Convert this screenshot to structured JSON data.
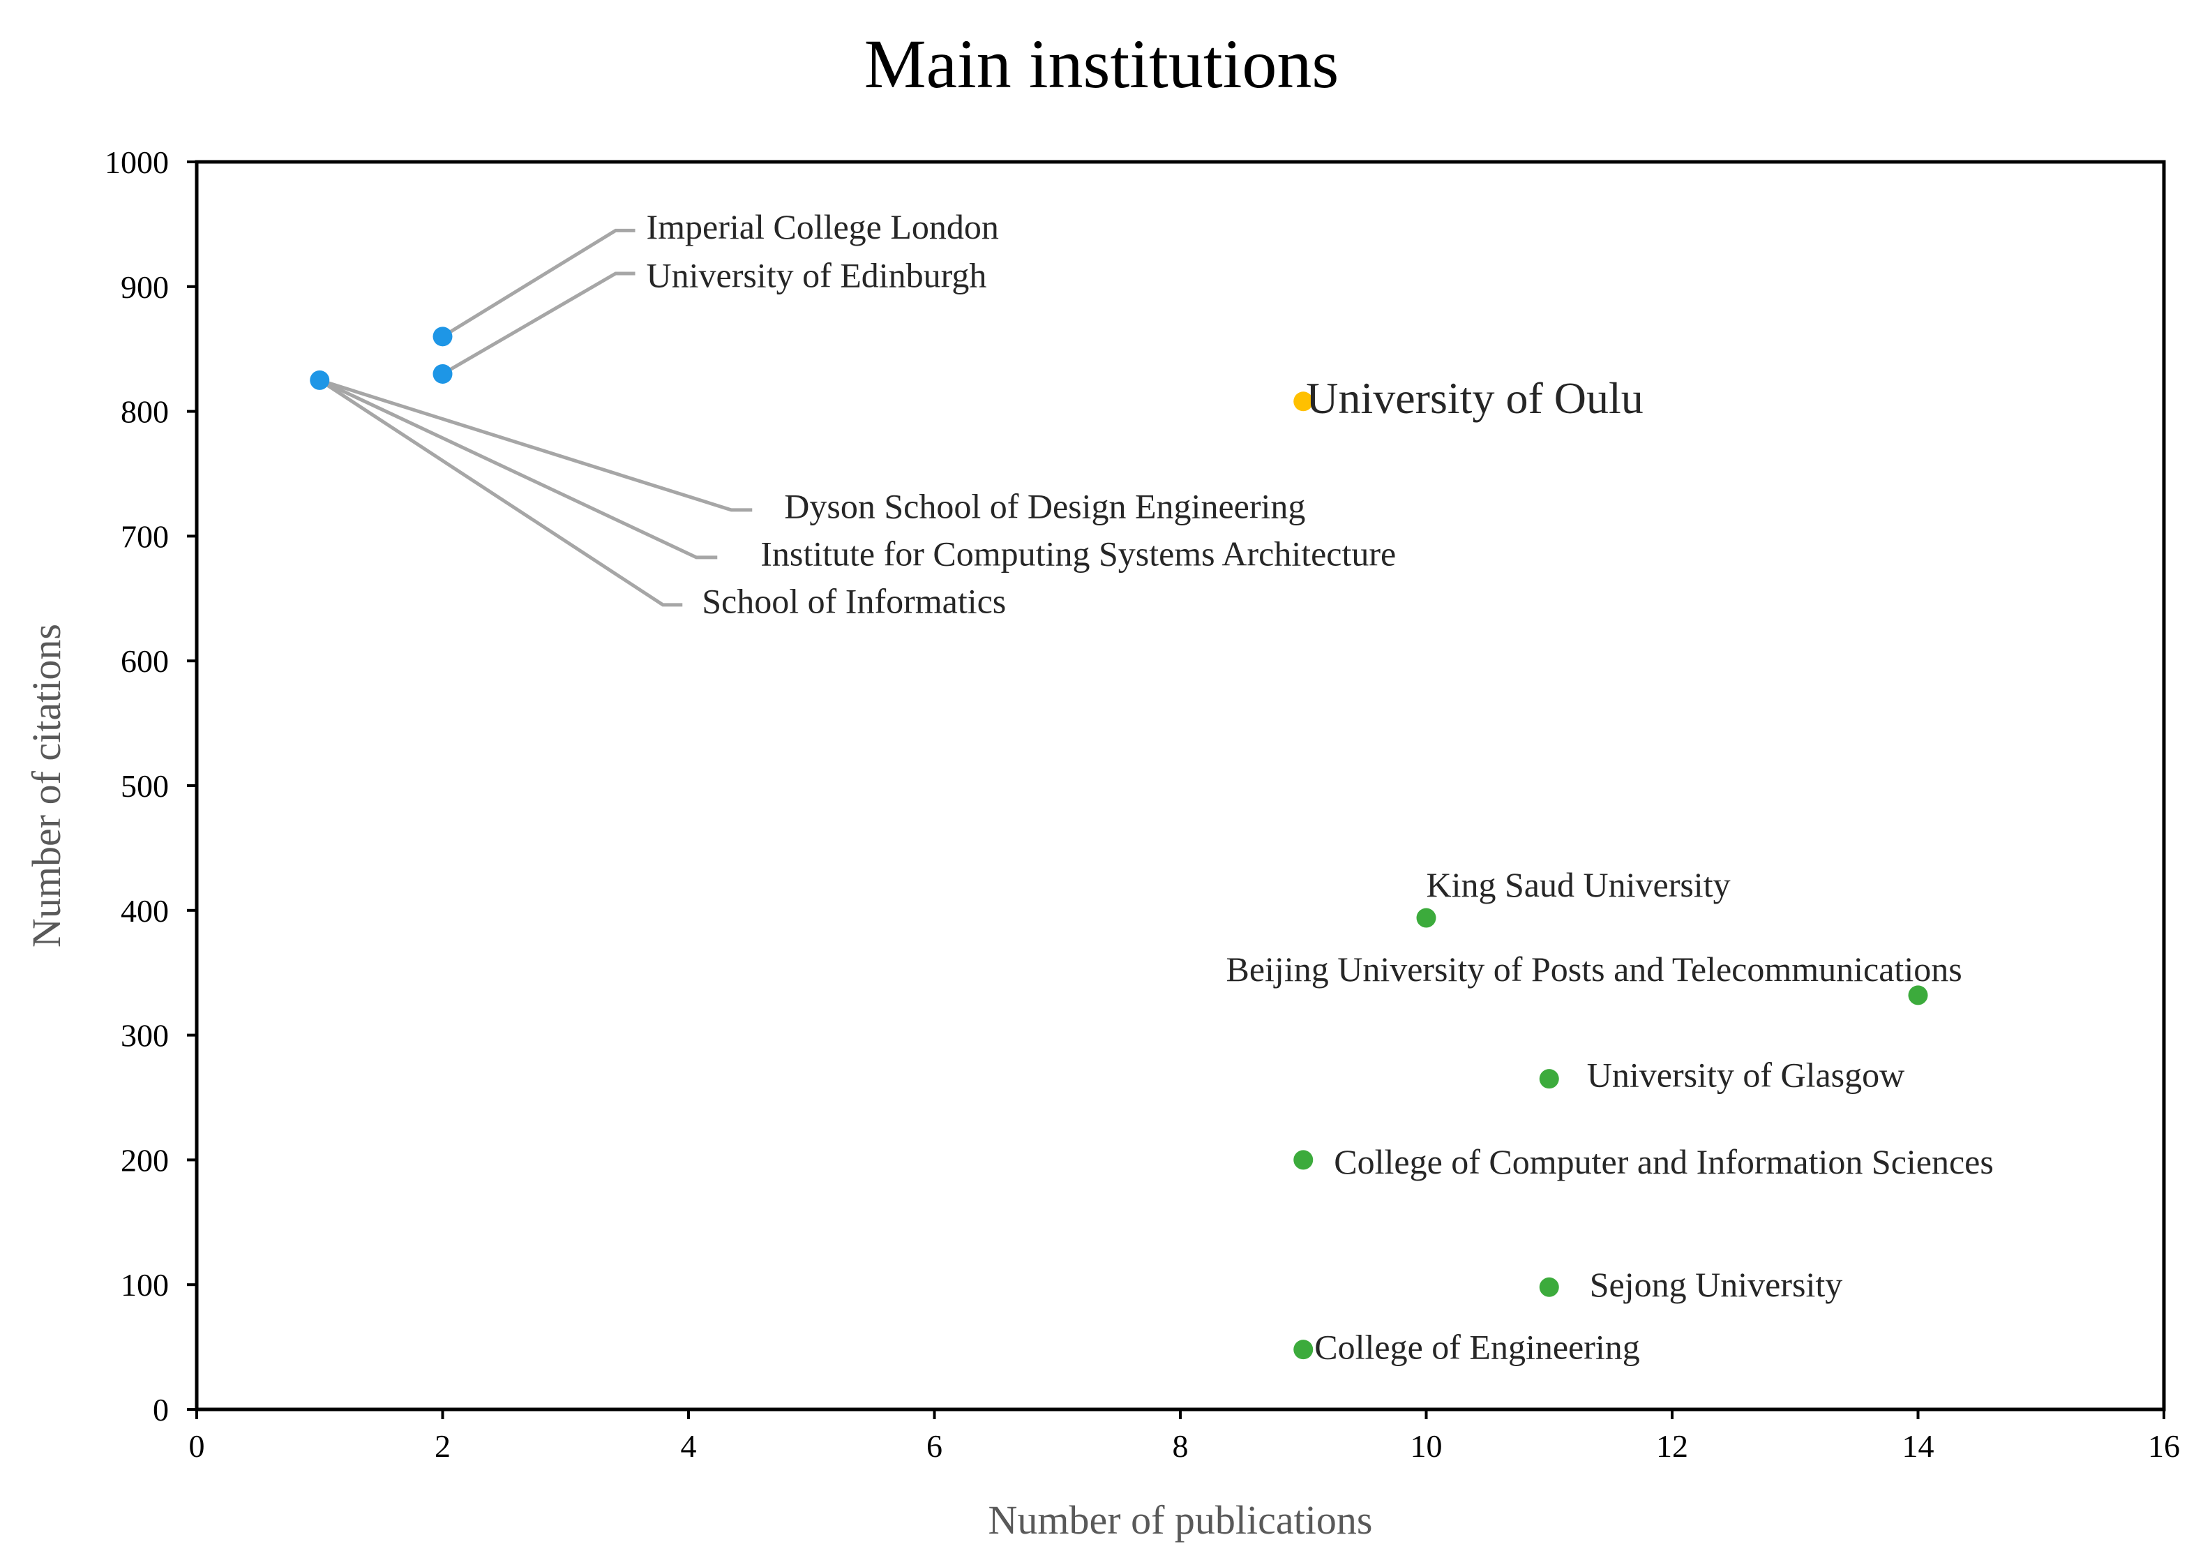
{
  "chart_data": {
    "type": "scatter",
    "title": "Main institutions",
    "xlabel": "Number of publications",
    "ylabel": "Number of citations",
    "xlim": [
      0,
      16
    ],
    "ylim": [
      0,
      1000
    ],
    "xticks": [
      0,
      2,
      4,
      6,
      8,
      10,
      12,
      14,
      16
    ],
    "yticks": [
      0,
      100,
      200,
      300,
      400,
      500,
      600,
      700,
      800,
      900,
      1000
    ],
    "grid": false,
    "legend": "none",
    "colors": {
      "blue": "#1e96e6",
      "orange": "#ffc000",
      "green": "#3cab3c"
    },
    "points": [
      {
        "label": "Imperial College London",
        "x": 2,
        "y": 860,
        "color": "blue"
      },
      {
        "label": "University of Edinburgh",
        "x": 2,
        "y": 830,
        "color": "blue"
      },
      {
        "label": "Dyson School of Design Engineering",
        "x": 1,
        "y": 825,
        "color": "blue"
      },
      {
        "label": "Institute for Computing Systems Architecture",
        "x": 1,
        "y": 825,
        "color": "blue"
      },
      {
        "label": "School of Informatics",
        "x": 1,
        "y": 825,
        "color": "blue"
      },
      {
        "label": "University of Oulu",
        "x": 9,
        "y": 808,
        "color": "orange"
      },
      {
        "label": "King Saud University",
        "x": 10,
        "y": 394,
        "color": "green"
      },
      {
        "label": "Beijing University of Posts and Telecommunications",
        "x": 14,
        "y": 332,
        "color": "green"
      },
      {
        "label": "University of Glasgow",
        "x": 11,
        "y": 265,
        "color": "green"
      },
      {
        "label": "College of Computer and Information Sciences",
        "x": 9,
        "y": 200,
        "color": "green"
      },
      {
        "label": "Sejong University",
        "x": 11,
        "y": 98,
        "color": "green"
      },
      {
        "label": "College of Engineering",
        "x": 9,
        "y": 48,
        "color": "green"
      }
    ]
  }
}
